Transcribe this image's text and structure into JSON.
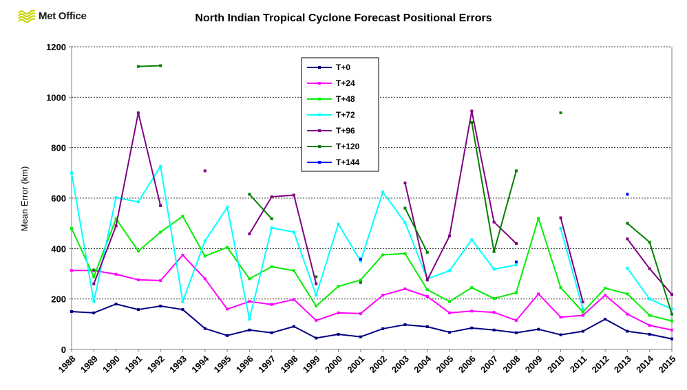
{
  "brand": {
    "name": "Met Office",
    "logo_icon": "met-office-wave-icon",
    "logo_color": "#c8d400"
  },
  "chart_data": {
    "type": "line",
    "title": "North Indian Tropical Cyclone Forecast Positional Errors",
    "ylabel": "Mean Error (km)",
    "xlabel": "",
    "ylim": [
      0,
      1200
    ],
    "yticks": [
      0,
      200,
      400,
      600,
      800,
      1000,
      1200
    ],
    "grid": "horizontal dashed",
    "legend_position": "top-center",
    "x": [
      "1988",
      "1989",
      "1990",
      "1991",
      "1992",
      "1993",
      "1994",
      "1995",
      "1996",
      "1997",
      "1998",
      "1999",
      "2000",
      "2001",
      "2002",
      "2003",
      "2004",
      "2005",
      "2006",
      "2007",
      "2008",
      "2009",
      "2010",
      "2011",
      "2012",
      "2013",
      "2014",
      "2015"
    ],
    "series": [
      {
        "name": "T+0",
        "color": "#000080",
        "values": [
          150,
          145,
          180,
          158,
          172,
          158,
          83,
          55,
          77,
          66,
          91,
          45,
          60,
          50,
          82,
          98,
          90,
          68,
          85,
          77,
          66,
          80,
          58,
          72,
          120,
          72,
          60,
          42
        ]
      },
      {
        "name": "T+24",
        "color": "#ff00ff",
        "values": [
          313,
          313,
          298,
          276,
          273,
          374,
          280,
          160,
          190,
          178,
          198,
          115,
          145,
          142,
          215,
          240,
          210,
          145,
          152,
          147,
          115,
          220,
          128,
          135,
          215,
          140,
          95,
          77
        ]
      },
      {
        "name": "T+48",
        "color": "#00ee00",
        "values": [
          480,
          288,
          518,
          390,
          465,
          528,
          370,
          405,
          280,
          328,
          312,
          172,
          250,
          275,
          375,
          380,
          237,
          190,
          245,
          202,
          225,
          520,
          245,
          148,
          243,
          220,
          135,
          113
        ]
      },
      {
        "name": "T+72",
        "color": "#00ffff",
        "values": [
          700,
          190,
          602,
          585,
          726,
          190,
          430,
          563,
          120,
          482,
          465,
          215,
          497,
          350,
          624,
          503,
          280,
          312,
          435,
          318,
          335,
          null,
          480,
          160,
          null,
          322,
          200,
          160
        ]
      },
      {
        "name": "T+96",
        "color": "#800080",
        "values": [
          null,
          260,
          490,
          938,
          570,
          null,
          708,
          null,
          458,
          605,
          612,
          260,
          null,
          null,
          null,
          660,
          275,
          450,
          945,
          505,
          420,
          null,
          522,
          188,
          null,
          438,
          320,
          218
        ]
      },
      {
        "name": "T+120",
        "color": "#008000",
        "values": [
          null,
          315,
          null,
          1122,
          1125,
          null,
          null,
          null,
          615,
          518,
          null,
          288,
          null,
          265,
          null,
          560,
          385,
          null,
          900,
          388,
          708,
          null,
          938,
          null,
          null,
          500,
          425,
          140
        ]
      },
      {
        "name": "T+144",
        "color": "#0000ff",
        "values": [
          null,
          null,
          null,
          null,
          null,
          null,
          null,
          null,
          null,
          null,
          null,
          null,
          null,
          358,
          null,
          null,
          null,
          null,
          null,
          null,
          347,
          null,
          null,
          null,
          null,
          615,
          null,
          null
        ]
      }
    ]
  }
}
